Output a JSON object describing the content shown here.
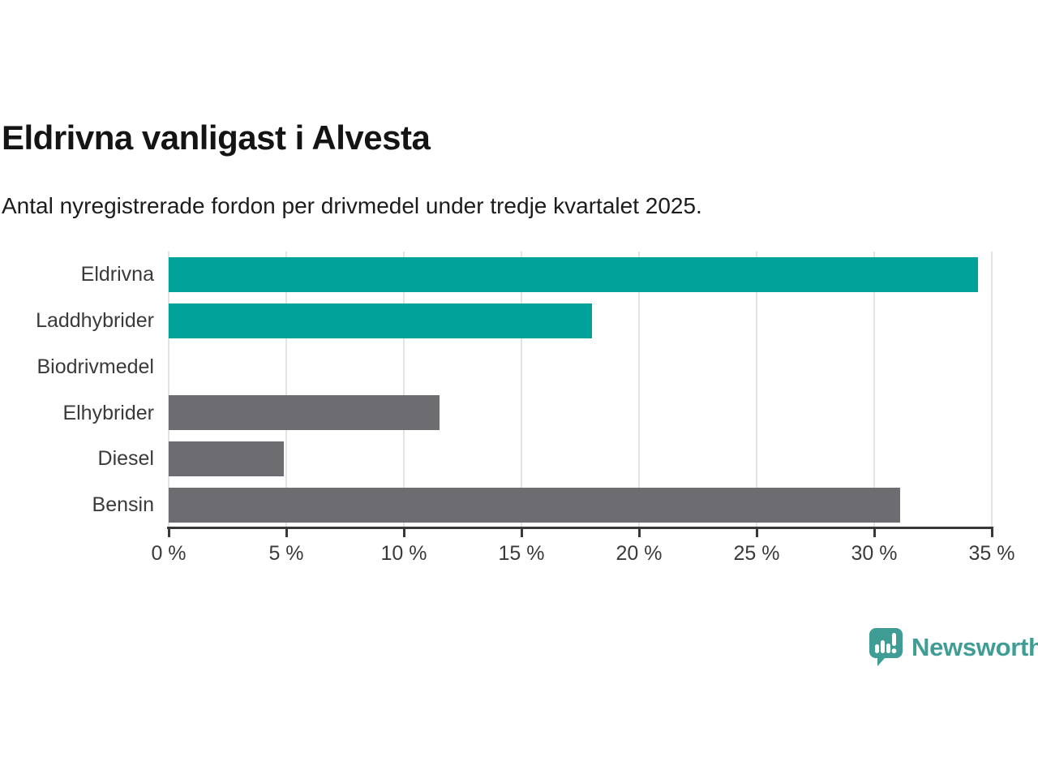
{
  "title": "Eldrivna vanligast i Alvesta",
  "subtitle": "Antal nyregistrerade fordon per drivmedel under tredje kvartalet 2025.",
  "chart_data": {
    "type": "bar",
    "orientation": "horizontal",
    "title": "Eldrivna vanligast i Alvesta",
    "subtitle": "Antal nyregistrerade fordon per drivmedel under tredje kvartalet 2025.",
    "categories": [
      "Eldrivna",
      "Laddhybrider",
      "Biodrivmedel",
      "Elhybrider",
      "Diesel",
      "Bensin"
    ],
    "values": [
      34.4,
      18,
      0,
      11.5,
      4.9,
      31.1
    ],
    "unit": "%",
    "xlim": [
      0,
      35
    ],
    "xticks": [
      0,
      5,
      10,
      15,
      20,
      25,
      30,
      35
    ],
    "xtick_labels": [
      "0 %",
      "5 %",
      "10 %",
      "15 %",
      "20 %",
      "25 %",
      "30 %",
      "35 %"
    ],
    "bar_colors": [
      "#00a29a",
      "#00a29a",
      "#6c6c71",
      "#6c6c71",
      "#6c6c71",
      "#6c6c71"
    ],
    "highlight_color": "#00a29a",
    "default_color": "#6c6c71",
    "grid": true,
    "gridline_color": "#e3e3e3",
    "axis_color": "#383838",
    "legend": "none"
  },
  "branding": {
    "logo_text": "Newsworthy",
    "logo_color": "#3f9d95",
    "logo_icon": "bar-chart-speech-bubble-icon"
  }
}
